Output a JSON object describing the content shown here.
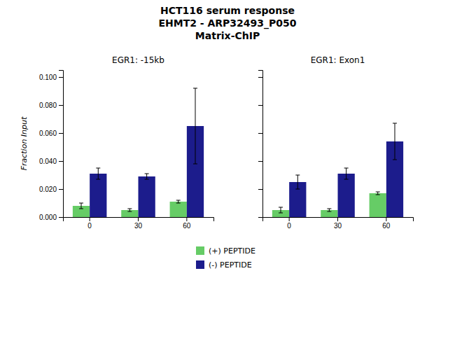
{
  "title": [
    "HCT116 serum response",
    "EHMT2 - ARP32493_P050",
    "Matrix-ChIP"
  ],
  "chart_data": [
    {
      "type": "bar",
      "title": "EGR1: -15kb",
      "y_label": "Fraction Input",
      "categories": [
        "0",
        "30",
        "60"
      ],
      "series": [
        {
          "name": "(+) PEPTIDE",
          "color": "#66CC66",
          "values": [
            0.008,
            0.005,
            0.011
          ],
          "errors": [
            0.002,
            0.001,
            0.001
          ]
        },
        {
          "name": "(-) PEPTIDE",
          "color": "#1C1C8C",
          "values": [
            0.031,
            0.029,
            0.065
          ],
          "errors": [
            0.004,
            0.002,
            0.027
          ]
        }
      ],
      "ylim": [
        0,
        0.105
      ],
      "yticks": [
        {
          "value": 0.0,
          "label": "0.000"
        },
        {
          "value": 0.02,
          "label": "0.020"
        },
        {
          "value": 0.04,
          "label": "0.040"
        },
        {
          "value": 0.06,
          "label": "0.060"
        },
        {
          "value": 0.08,
          "label": "0.080"
        },
        {
          "value": 0.1,
          "label": "0.100"
        }
      ]
    },
    {
      "type": "bar",
      "title": "EGR1: Exon1",
      "categories": [
        "0",
        "30",
        "60"
      ],
      "series": [
        {
          "color": "#66CC66",
          "values": [
            0.005,
            0.005,
            0.017
          ],
          "errors": [
            0.002,
            0.001,
            0.001
          ]
        },
        {
          "color": "#1C1C8C",
          "values": [
            0.025,
            0.031,
            0.054
          ],
          "errors": [
            0.005,
            0.004,
            0.013
          ]
        }
      ],
      "ylim": [
        0,
        0.105
      ],
      "yticks": [
        0.0,
        0.02,
        0.04,
        0.06,
        0.08,
        0.1
      ],
      "tick_labels": "x"
    }
  ]
}
